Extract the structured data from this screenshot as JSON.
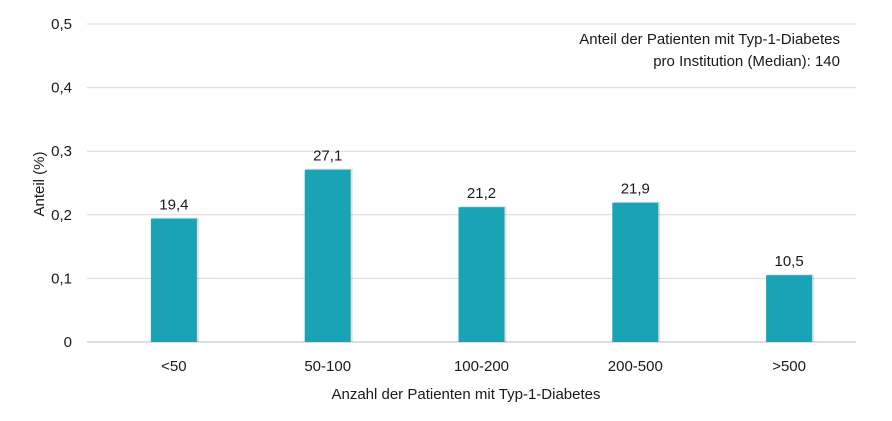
{
  "chart_data": {
    "type": "bar",
    "categories": [
      "<50",
      "50-100",
      "100-200",
      "200-500",
      ">500"
    ],
    "values": [
      0.194,
      0.271,
      0.212,
      0.219,
      0.105
    ],
    "data_labels": [
      "19,4",
      "27,1",
      "21,2",
      "21,9",
      "10,5"
    ],
    "ylim": [
      0,
      0.5
    ],
    "yticks": [
      0,
      0.1,
      0.2,
      0.3,
      0.4,
      0.5
    ],
    "ytick_labels": [
      "0",
      "0,1",
      "0,2",
      "0,3",
      "0,4",
      "0,5"
    ],
    "xlabel": "Anzahl der Patienten mit Typ-1-Diabetes",
    "ylabel": "Anteil (%)",
    "annotation": [
      "Anteil der Patienten mit Typ-1-Diabetes",
      "pro Institution (Median): 140"
    ],
    "grid": true,
    "bar_color": "#1aa3b5",
    "grid_color": "#d9d9d9"
  }
}
